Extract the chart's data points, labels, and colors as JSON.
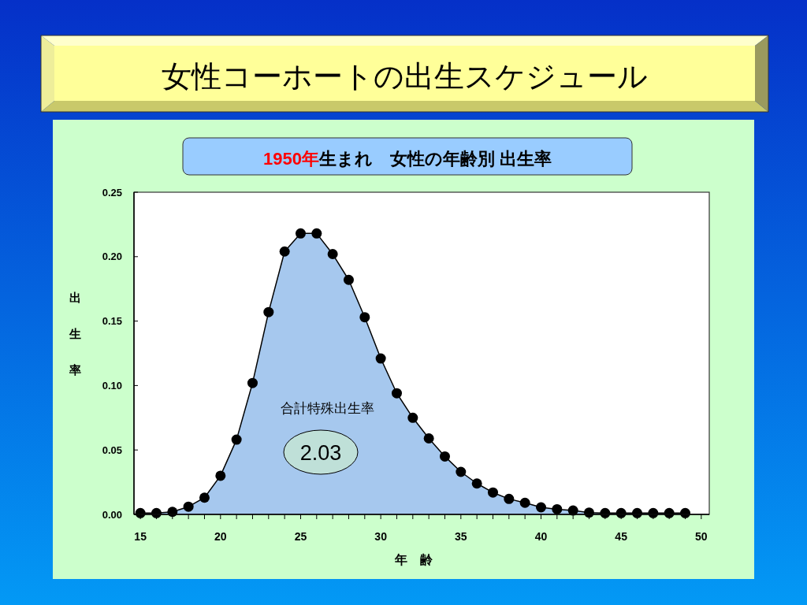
{
  "chart_data": {
    "type": "area",
    "title": "女性コーホートの出生スケジュール",
    "subtitle": "1950年生まれ　女性の年齢別 出生率",
    "xlabel": "年　齢",
    "ylabel": "出生率",
    "x": [
      15,
      16,
      17,
      18,
      19,
      20,
      21,
      22,
      23,
      24,
      25,
      26,
      27,
      28,
      29,
      30,
      31,
      32,
      33,
      34,
      35,
      36,
      37,
      38,
      39,
      40,
      41,
      42,
      43,
      44,
      45,
      46,
      47,
      48,
      49
    ],
    "series": [
      {
        "color": "#a6c8ee",
        "values": [
          0.001,
          0.001,
          0.002,
          0.006,
          0.013,
          0.03,
          0.058,
          0.102,
          0.157,
          0.204,
          0.218,
          0.218,
          0.202,
          0.182,
          0.153,
          0.121,
          0.094,
          0.075,
          0.059,
          0.045,
          0.033,
          0.024,
          0.017,
          0.012,
          0.009,
          0.0055,
          0.004,
          0.003,
          0.0014,
          0.001,
          0.001,
          0.001,
          0.001,
          0.001,
          0.001
        ]
      }
    ],
    "xlim": [
      14.6,
      50.5
    ],
    "xticks": [
      15,
      {
        "value": 16,
        "label": null
      },
      {
        "value": 17,
        "label": null
      },
      {
        "value": 18,
        "label": null
      },
      {
        "value": 19,
        "label": null
      },
      20,
      {
        "value": 21,
        "label": null
      },
      {
        "value": 22,
        "label": null
      },
      {
        "value": 23,
        "label": null
      },
      {
        "value": 24,
        "label": null
      },
      25,
      {
        "value": 26,
        "label": null
      },
      {
        "value": 27,
        "label": null
      },
      {
        "value": 28,
        "label": null
      },
      {
        "value": 29,
        "label": null
      },
      30,
      {
        "value": 31,
        "label": null
      },
      {
        "value": 32,
        "label": null
      },
      {
        "value": 33,
        "label": null
      },
      {
        "value": 34,
        "label": null
      },
      35,
      {
        "value": 36,
        "label": null
      },
      {
        "value": 37,
        "label": null
      },
      {
        "value": 38,
        "label": null
      },
      {
        "value": 39,
        "label": null
      },
      40,
      {
        "value": 41,
        "label": null
      },
      {
        "value": 42,
        "label": null
      },
      {
        "value": 43,
        "label": null
      },
      {
        "value": 44,
        "label": null
      },
      45,
      {
        "value": 46,
        "label": null
      },
      {
        "value": 47,
        "label": null
      },
      {
        "value": 48,
        "label": null
      },
      {
        "value": 49,
        "label": null
      },
      50
    ],
    "ylim": [
      0,
      0.25
    ],
    "yticks": [
      {
        "value": 0,
        "label": "0.00"
      },
      {
        "value": 0.05,
        "label": "0.05"
      },
      {
        "value": 0.1,
        "label": "0.10"
      },
      {
        "value": 0.15,
        "label": "0.15"
      },
      {
        "value": 0.2,
        "label": "0.20"
      },
      {
        "value": 0.25,
        "label": "0.25"
      }
    ],
    "marker": "circle",
    "annotations": [
      "合計特殊出生率",
      "2.03"
    ]
  }
}
